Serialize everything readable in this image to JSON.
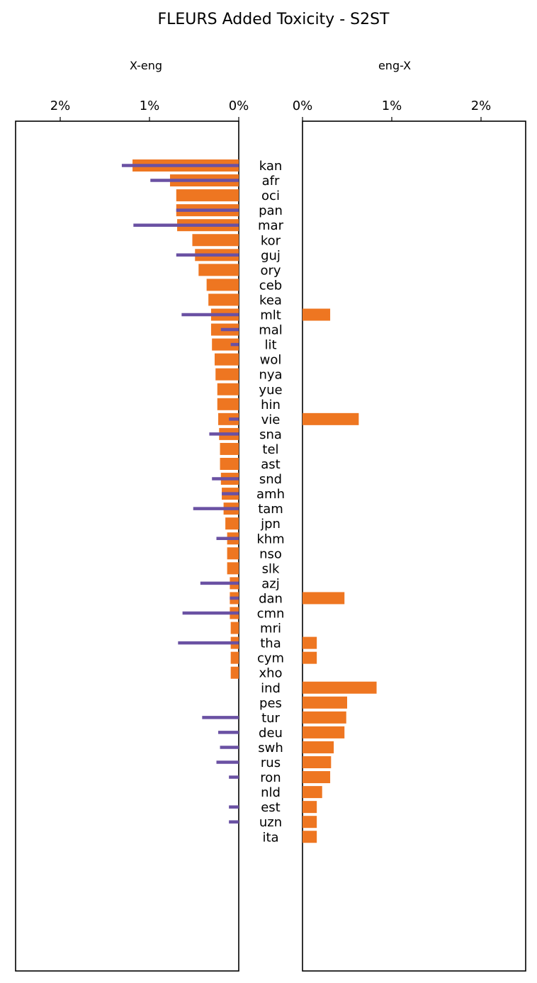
{
  "chart_data": {
    "type": "bar",
    "orientation": "horizontal",
    "title": "FLEURS Added Toxicity - S2ST",
    "languages": [
      "kan",
      "afr",
      "oci",
      "pan",
      "mar",
      "kor",
      "guj",
      "ory",
      "ceb",
      "kea",
      "mlt",
      "mal",
      "lit",
      "wol",
      "nya",
      "yue",
      "hin",
      "vie",
      "sna",
      "tel",
      "ast",
      "snd",
      "amh",
      "tam",
      "jpn",
      "khm",
      "nso",
      "slk",
      "azj",
      "dan",
      "cmn",
      "mri",
      "tha",
      "cym",
      "xho",
      "ind",
      "pes",
      "tur",
      "deu",
      "swh",
      "rus",
      "ron",
      "nld",
      "est",
      "uzn",
      "ita"
    ],
    "panels": [
      {
        "subtitle": "X-eng",
        "xlim": [
          2.5,
          0
        ],
        "ticks": [
          2,
          1,
          0
        ],
        "tick_labels": [
          "2%",
          "1%",
          "0%"
        ],
        "bars": [
          1.19,
          0.77,
          0.7,
          0.7,
          0.69,
          0.52,
          0.49,
          0.45,
          0.36,
          0.34,
          0.31,
          0.31,
          0.3,
          0.27,
          0.26,
          0.24,
          0.24,
          0.23,
          0.22,
          0.21,
          0.21,
          0.2,
          0.19,
          0.17,
          0.15,
          0.13,
          0.13,
          0.13,
          0.1,
          0.1,
          0.1,
          0.09,
          0.09,
          0.09,
          0.09,
          0,
          0,
          0,
          0,
          0,
          0,
          0,
          0,
          0,
          0,
          0
        ],
        "lines": [
          1.31,
          0.99,
          0,
          0.7,
          1.18,
          0,
          0.7,
          0,
          0,
          0,
          0.64,
          0.2,
          0.09,
          0,
          0,
          0,
          0,
          0.11,
          0.33,
          0,
          0,
          0.3,
          0.19,
          0.51,
          0,
          0.25,
          0,
          0,
          0.43,
          0.1,
          0.63,
          0,
          0.68,
          0,
          0,
          0,
          0,
          0.41,
          0.23,
          0.21,
          0.25,
          0.11,
          0,
          0.11,
          0.11,
          0
        ]
      },
      {
        "subtitle": "eng-X",
        "xlim": [
          0,
          2.5
        ],
        "ticks": [
          0,
          1,
          2
        ],
        "tick_labels": [
          "0%",
          "1%",
          "2%"
        ],
        "bars": [
          0,
          0,
          0,
          0,
          0,
          0,
          0,
          0,
          0,
          0,
          0.31,
          0,
          0,
          0,
          0,
          0,
          0,
          0.63,
          0,
          0,
          0,
          0,
          0,
          0,
          0,
          0,
          0,
          0,
          0,
          0.47,
          0,
          0,
          0.16,
          0.16,
          0,
          0.83,
          0.5,
          0.49,
          0.47,
          0.35,
          0.32,
          0.31,
          0.22,
          0.16,
          0.16,
          0.16
        ],
        "lines": []
      }
    ],
    "colors": {
      "bars": "#ee7621",
      "lines": "#6a51a3"
    },
    "grid": false
  }
}
